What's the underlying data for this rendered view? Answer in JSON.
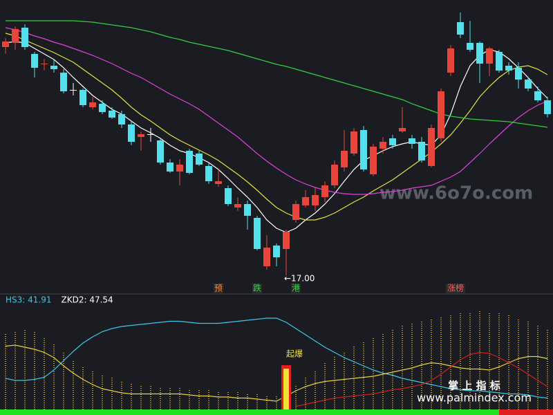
{
  "chart_data": [
    {
      "type": "candlestick",
      "ylim": [
        15.9,
        36.9
      ],
      "up_color": "#e8463c",
      "down_color": "#54e0ec",
      "flat_color": "#ffffff",
      "open": [
        33.5,
        33.8,
        34.9,
        33.0,
        32.25,
        32.15,
        31.65,
        30.4,
        30.4,
        29.15,
        29.4,
        28.9,
        28.65,
        27.9,
        27.0,
        27.2,
        26.75,
        25.15,
        24.5,
        26.0,
        25.8,
        24.9,
        23.6,
        23.3,
        21.9,
        22.15,
        21.15,
        17.65,
        19.15,
        18.9,
        21.0,
        22.05,
        22.05,
        22.65,
        23.5,
        24.8,
        25.8,
        27.5,
        24.3,
        26.15,
        26.9,
        27.4,
        26.9,
        26.65,
        24.9,
        26.9,
        31.65,
        35.3,
        33.8,
        33.8,
        32.3,
        33.15,
        32.15,
        32.0,
        31.15,
        30.3,
        29.65
      ],
      "close": [
        33.9,
        34.8,
        33.5,
        32.0,
        32.3,
        31.9,
        30.3,
        30.4,
        29.3,
        29.5,
        28.8,
        28.4,
        27.9,
        26.65,
        27.2,
        27.2,
        25.15,
        24.5,
        25.0,
        24.4,
        25.0,
        23.8,
        23.8,
        22.15,
        22.15,
        21.3,
        18.9,
        19.0,
        18.3,
        20.15,
        22.15,
        22.65,
        22.8,
        23.5,
        25.0,
        26.0,
        27.4,
        24.65,
        26.3,
        26.65,
        26.4,
        27.65,
        26.5,
        25.3,
        27.65,
        30.3,
        33.4,
        34.4,
        33.3,
        32.3,
        33.4,
        31.8,
        31.8,
        31.15,
        30.5,
        29.65,
        28.65
      ],
      "high": [
        34.15,
        35.0,
        35.15,
        33.15,
        32.65,
        32.65,
        31.9,
        30.9,
        30.5,
        29.9,
        29.65,
        29.15,
        28.9,
        28.15,
        27.4,
        27.65,
        26.9,
        25.4,
        25.4,
        26.15,
        26.0,
        25.1,
        24.65,
        23.5,
        22.65,
        22.4,
        21.3,
        19.9,
        19.3,
        20.3,
        22.4,
        23.15,
        23.4,
        23.8,
        25.3,
        27.5,
        27.65,
        27.8,
        26.5,
        27.0,
        27.15,
        29.15,
        27.15,
        27.0,
        27.9,
        30.5,
        33.65,
        36.0,
        35.4,
        33.9,
        33.5,
        33.3,
        32.4,
        32.4,
        31.3,
        30.65,
        29.9
      ],
      "low": [
        33.0,
        33.3,
        33.3,
        31.3,
        31.8,
        31.65,
        30.15,
        30.0,
        29.15,
        29.0,
        28.65,
        28.3,
        27.65,
        26.4,
        26.0,
        26.65,
        25.0,
        24.4,
        23.5,
        24.3,
        24.9,
        23.6,
        23.4,
        22.0,
        21.65,
        20.3,
        18.8,
        17.4,
        17.65,
        17.0,
        20.8,
        21.9,
        21.65,
        22.3,
        23.3,
        24.5,
        25.65,
        24.5,
        24.15,
        25.8,
        26.15,
        27.3,
        26.15,
        25.15,
        24.8,
        26.65,
        31.4,
        34.15,
        33.15,
        30.9,
        31.4,
        31.65,
        31.5,
        30.5,
        30.3,
        29.5,
        28.4
      ],
      "series": [
        {
          "color": "#ffffff",
          "values": [
            33.8,
            33.9,
            33.8,
            33.4,
            33.0,
            32.6,
            32.0,
            31.3,
            30.65,
            30.0,
            29.5,
            29.0,
            28.65,
            28.15,
            27.65,
            27.3,
            26.9,
            26.4,
            26.0,
            25.8,
            25.5,
            25.15,
            24.65,
            24.0,
            23.3,
            22.65,
            21.9,
            21.0,
            20.4,
            20.1,
            20.4,
            21.0,
            21.5,
            22.15,
            22.9,
            23.8,
            24.65,
            25.3,
            25.65,
            26.0,
            26.3,
            26.5,
            26.65,
            26.5,
            26.4,
            27.15,
            28.65,
            30.65,
            32.15,
            32.9,
            33.3,
            33.15,
            32.65,
            32.0,
            31.3,
            30.5,
            29.8
          ]
        },
        {
          "color": "#e8e040",
          "values": [
            34.5,
            34.3,
            34.0,
            33.7,
            33.4,
            33.1,
            32.75,
            32.4,
            31.9,
            31.4,
            30.9,
            30.4,
            29.8,
            29.15,
            28.6,
            28.15,
            27.65,
            27.15,
            26.75,
            26.4,
            26.05,
            25.7,
            25.3,
            24.8,
            24.3,
            23.75,
            23.15,
            22.5,
            21.9,
            21.5,
            21.2,
            21.0,
            21.0,
            21.2,
            21.5,
            21.9,
            22.3,
            22.65,
            23.1,
            23.5,
            23.9,
            24.4,
            24.9,
            25.4,
            25.9,
            26.5,
            27.15,
            28.0,
            28.9,
            29.9,
            30.65,
            31.3,
            31.8,
            32.05,
            32.15,
            31.9,
            31.5
          ]
        },
        {
          "color": "#e040e0",
          "values": [
            34.9,
            34.75,
            34.55,
            34.3,
            34.1,
            33.85,
            33.65,
            33.4,
            33.15,
            32.9,
            32.6,
            32.3,
            31.95,
            31.6,
            31.3,
            30.9,
            30.5,
            30.1,
            29.75,
            29.4,
            29.0,
            28.5,
            28.0,
            27.5,
            27.0,
            26.4,
            25.8,
            25.25,
            24.75,
            24.3,
            23.9,
            23.6,
            23.35,
            23.15,
            23.0,
            22.9,
            22.85,
            22.85,
            22.9,
            23.0,
            23.05,
            23.15,
            23.3,
            23.4,
            23.5,
            23.8,
            24.1,
            24.5,
            25.15,
            25.8,
            26.5,
            27.15,
            27.8,
            28.4,
            28.9,
            29.3,
            29.6
          ]
        },
        {
          "color": "#30d040",
          "values": [
            35.4,
            35.4,
            35.4,
            35.4,
            35.4,
            35.4,
            35.4,
            35.4,
            35.35,
            35.3,
            35.2,
            35.1,
            35.0,
            34.9,
            34.75,
            34.6,
            34.4,
            34.2,
            34.05,
            33.85,
            33.7,
            33.55,
            33.4,
            33.25,
            33.05,
            32.85,
            32.65,
            32.45,
            32.25,
            32.1,
            31.9,
            31.7,
            31.5,
            31.3,
            31.1,
            30.9,
            30.7,
            30.5,
            30.3,
            30.1,
            29.9,
            29.7,
            29.4,
            29.15,
            28.9,
            28.65,
            28.5,
            28.4,
            28.3,
            28.25,
            28.2,
            28.15,
            28.1,
            28.0,
            27.9,
            27.8,
            27.7
          ]
        }
      ],
      "annotation": "←17.00",
      "signals": [
        {
          "text": "预",
          "color": "#f08a3a"
        },
        {
          "text": "跌",
          "color": "#40d050"
        },
        {
          "text": "港",
          "color": "#40d050"
        },
        {
          "text": "涨榜",
          "color": "#f06060"
        }
      ],
      "watermark": "www.6o7o.com"
    },
    {
      "type": "line",
      "ylim": [
        0,
        100
      ],
      "legend_texts": [
        {
          "text": "HS3: 41.91",
          "color": "#3cc8e8"
        },
        {
          "text": "ZKD2: 47.54",
          "color": "#ffffff"
        }
      ],
      "signal_label": "起爆",
      "bar_color": "#b89a30",
      "bars": [
        75,
        78,
        80,
        78,
        72,
        65,
        58,
        50,
        44,
        40,
        36,
        33,
        30,
        28,
        26,
        25,
        24,
        24,
        23,
        22,
        22,
        21,
        20,
        20,
        19,
        18,
        17,
        16,
        15,
        18,
        25,
        33,
        40,
        47,
        53,
        58,
        63,
        68,
        72,
        76,
        80,
        83,
        86,
        88,
        90,
        92,
        94,
        95,
        96,
        97,
        96,
        95,
        93,
        90,
        87,
        84,
        80
      ],
      "series": [
        {
          "color": "#3cc8e8",
          "values": [
            32,
            30,
            30,
            31,
            33,
            40,
            49,
            58,
            66,
            72,
            77,
            80,
            82,
            83,
            84,
            85,
            86,
            87,
            87,
            86,
            85,
            85,
            85,
            86,
            87,
            88,
            89,
            90,
            90,
            86,
            80,
            74,
            68,
            62,
            57,
            52,
            48,
            44,
            40,
            37,
            35,
            32,
            30,
            28,
            26,
            24,
            22,
            21,
            20,
            20,
            19,
            18,
            17,
            17,
            16,
            14,
            13
          ]
        },
        {
          "color": "#e8d040",
          "values": [
            63,
            64,
            62,
            60,
            57,
            52,
            44,
            37,
            31,
            26,
            22,
            20,
            18,
            17,
            17,
            17,
            17,
            17,
            17,
            16,
            15,
            15,
            14,
            14,
            13,
            13,
            12,
            11,
            10,
            15,
            20,
            24,
            27,
            29,
            30,
            31,
            32,
            33,
            34,
            36,
            38,
            40,
            42,
            45,
            47,
            46,
            44,
            42,
            41,
            41,
            40,
            43,
            47,
            51,
            53,
            53,
            51
          ]
        },
        {
          "color": "#d02020",
          "values": [
            null,
            null,
            null,
            null,
            null,
            null,
            null,
            null,
            null,
            null,
            null,
            null,
            null,
            null,
            null,
            null,
            null,
            null,
            null,
            null,
            null,
            null,
            null,
            null,
            null,
            null,
            null,
            null,
            null,
            null,
            5,
            7,
            9,
            11,
            13,
            14,
            15,
            16,
            17,
            19,
            21,
            22,
            24,
            26,
            30,
            36,
            43,
            50,
            55,
            57,
            56,
            52,
            47,
            42,
            36,
            30,
            24
          ]
        }
      ],
      "watermark": [
        "掌 上 指 标",
        "www.palmindex.com"
      ]
    }
  ]
}
